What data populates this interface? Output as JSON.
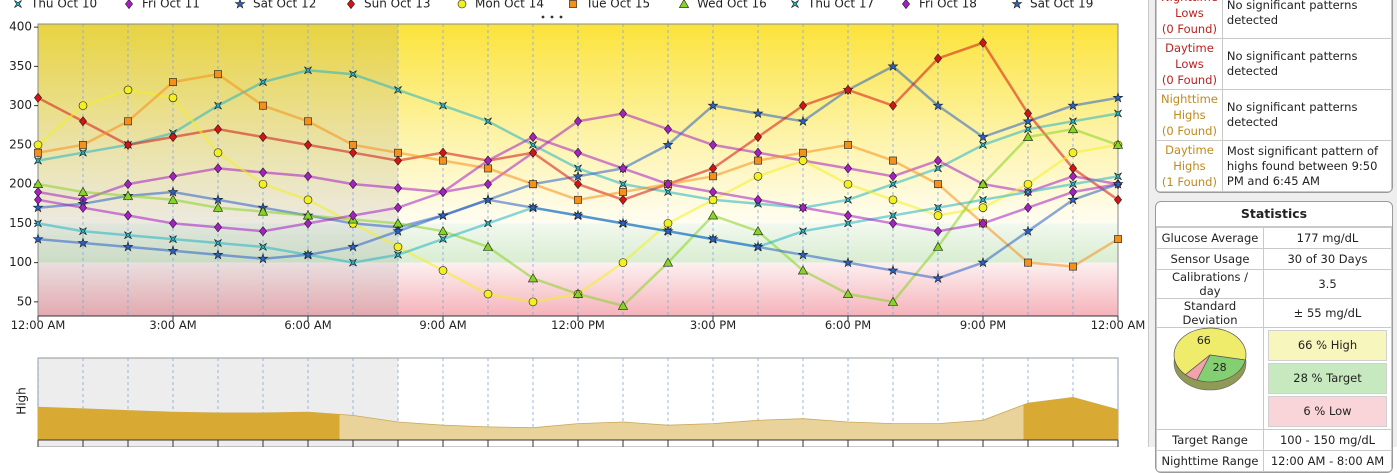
{
  "chart_data": [
    {
      "type": "scatter",
      "legend": "top",
      "x": [
        0,
        1,
        2,
        3,
        4,
        5,
        6,
        7,
        8,
        9,
        10,
        11,
        12,
        13,
        14,
        15,
        16,
        17,
        18,
        19,
        20,
        21,
        22,
        23,
        24
      ],
      "xlim": [
        0,
        24
      ],
      "xticks": [
        {
          "value": 0,
          "label": "12:00 AM"
        },
        {
          "value": 3,
          "label": "3:00 AM"
        },
        {
          "value": 6,
          "label": "6:00 AM"
        },
        {
          "value": 9,
          "label": "9:00 AM"
        },
        {
          "value": 12,
          "label": "12:00 PM"
        },
        {
          "value": 15,
          "label": "3:00 PM"
        },
        {
          "value": 18,
          "label": "6:00 PM"
        },
        {
          "value": 21,
          "label": "9:00 PM"
        },
        {
          "value": 24,
          "label": "12:00 AM"
        }
      ],
      "ylim": [
        32,
        404
      ],
      "yticks": [
        50,
        100,
        150,
        200,
        250,
        300,
        350,
        400
      ],
      "target_range": [
        100,
        150
      ],
      "night_hours": [
        0,
        8
      ],
      "series": [
        {
          "name": "Thu Oct 10",
          "color": "#22b5c4",
          "marker": "cross",
          "values": [
            230,
            240,
            250,
            265,
            300,
            330,
            345,
            340,
            320,
            300,
            280,
            250,
            220,
            200,
            190,
            180,
            175,
            170,
            180,
            200,
            220,
            250,
            270,
            280,
            290
          ]
        },
        {
          "name": "Fri Oct 11",
          "color": "#a61fc4",
          "marker": "diamond",
          "values": [
            190,
            180,
            200,
            210,
            220,
            215,
            210,
            200,
            195,
            190,
            200,
            240,
            280,
            290,
            270,
            250,
            240,
            230,
            220,
            210,
            230,
            200,
            190,
            210,
            200
          ]
        },
        {
          "name": "Sat Oct 12",
          "color": "#2a62c8",
          "marker": "star",
          "values": [
            170,
            175,
            185,
            190,
            180,
            170,
            160,
            150,
            145,
            160,
            180,
            200,
            210,
            220,
            250,
            300,
            290,
            280,
            320,
            350,
            300,
            260,
            280,
            300,
            310
          ]
        },
        {
          "name": "Sun Oct 13",
          "color": "#d41414",
          "marker": "diamond",
          "values": [
            310,
            280,
            250,
            260,
            270,
            260,
            250,
            240,
            230,
            240,
            230,
            240,
            200,
            180,
            200,
            220,
            260,
            300,
            320,
            300,
            360,
            380,
            290,
            220,
            180
          ]
        },
        {
          "name": "Mon Oct 14",
          "color": "#f2f021",
          "marker": "circle",
          "values": [
            250,
            300,
            320,
            310,
            240,
            200,
            180,
            150,
            120,
            90,
            60,
            50,
            60,
            100,
            150,
            180,
            210,
            230,
            200,
            180,
            160,
            170,
            200,
            240,
            250
          ]
        },
        {
          "name": "Tue Oct 15",
          "color": "#f5901a",
          "marker": "square",
          "values": [
            240,
            250,
            280,
            330,
            340,
            300,
            280,
            250,
            240,
            230,
            220,
            200,
            180,
            190,
            200,
            210,
            230,
            240,
            250,
            230,
            200,
            150,
            100,
            95,
            130
          ]
        },
        {
          "name": "Wed Oct 16",
          "color": "#86d424",
          "marker": "triangle",
          "values": [
            200,
            190,
            185,
            180,
            170,
            165,
            160,
            155,
            150,
            140,
            120,
            80,
            60,
            45,
            100,
            160,
            140,
            90,
            60,
            50,
            120,
            200,
            260,
            270,
            250
          ]
        },
        {
          "name": "Thu Oct 17",
          "color": "#22b5c4",
          "marker": "cross",
          "values": [
            150,
            140,
            135,
            130,
            125,
            120,
            110,
            100,
            110,
            130,
            150,
            170,
            160,
            150,
            140,
            130,
            120,
            140,
            150,
            160,
            170,
            180,
            190,
            200,
            210
          ]
        },
        {
          "name": "Fri Oct 18",
          "color": "#a61fc4",
          "marker": "diamond",
          "values": [
            180,
            170,
            160,
            150,
            145,
            140,
            150,
            160,
            170,
            190,
            230,
            260,
            240,
            220,
            200,
            190,
            180,
            170,
            160,
            150,
            140,
            150,
            170,
            190,
            200
          ]
        },
        {
          "name": "Sat Oct 19",
          "color": "#2a62c8",
          "marker": "star",
          "values": [
            130,
            125,
            120,
            115,
            110,
            105,
            110,
            120,
            140,
            160,
            180,
            170,
            160,
            150,
            140,
            130,
            120,
            110,
            100,
            90,
            80,
            100,
            140,
            180,
            200
          ]
        }
      ]
    },
    {
      "type": "area",
      "ylabel": "High",
      "x": [
        0,
        1,
        2,
        3,
        4,
        5,
        6,
        7,
        8,
        9,
        10,
        11,
        12,
        13,
        14,
        15,
        16,
        17,
        18,
        19,
        20,
        21,
        22,
        23,
        24
      ],
      "xlim": [
        0,
        24
      ],
      "ylim": [
        0,
        100
      ],
      "values": [
        40,
        38,
        36,
        34,
        33,
        33,
        34,
        30,
        22,
        18,
        16,
        15,
        20,
        22,
        18,
        20,
        24,
        26,
        22,
        20,
        20,
        24,
        45,
        52,
        37
      ],
      "color": "#ead39a",
      "highlight_color": "#d8aa34",
      "highlight_spans": [
        [
          0,
          6.7
        ],
        [
          21.9,
          24
        ]
      ],
      "night_hours": [
        0,
        8
      ]
    },
    {
      "type": "pie",
      "categories": [
        "High",
        "Target",
        "Low"
      ],
      "values": [
        66,
        28,
        6
      ],
      "value_labels": [
        "66 % High",
        "28 % Target",
        "6 % Low"
      ],
      "colors": [
        "#eeec6a",
        "#84cf72",
        "#f2a2aa"
      ]
    }
  ],
  "patterns": {
    "rows": [
      {
        "label": "Nighttime Lows",
        "count": "(0 Found)",
        "text": "No significant patterns detected",
        "color": "#b8231f"
      },
      {
        "label": "Daytime Lows",
        "count": "(0 Found)",
        "text": "No significant patterns detected",
        "color": "#b8231f"
      },
      {
        "label": "Nighttime Highs",
        "count": "(0 Found)",
        "text": "No significant patterns detected",
        "color": "#c08a1c"
      },
      {
        "label": "Daytime Highs",
        "count": "(1 Found)",
        "text": "Most significant pattern of highs found between 9:50 PM and 6:45 AM",
        "color": "#c08a1c"
      }
    ]
  },
  "statistics": {
    "title": "Statistics",
    "rows": [
      [
        "Glucose Average",
        "177 mg/dL"
      ],
      [
        "Sensor Usage",
        "30 of 30 Days"
      ],
      [
        "Calibrations / day",
        "3.5"
      ],
      [
        "Standard Deviation",
        "± 55 mg/dL"
      ]
    ],
    "footer_rows": [
      [
        "Target Range",
        "100 - 150 mg/dL"
      ],
      [
        "Nighttime Range",
        "12:00 AM - 8:00 AM"
      ]
    ]
  }
}
